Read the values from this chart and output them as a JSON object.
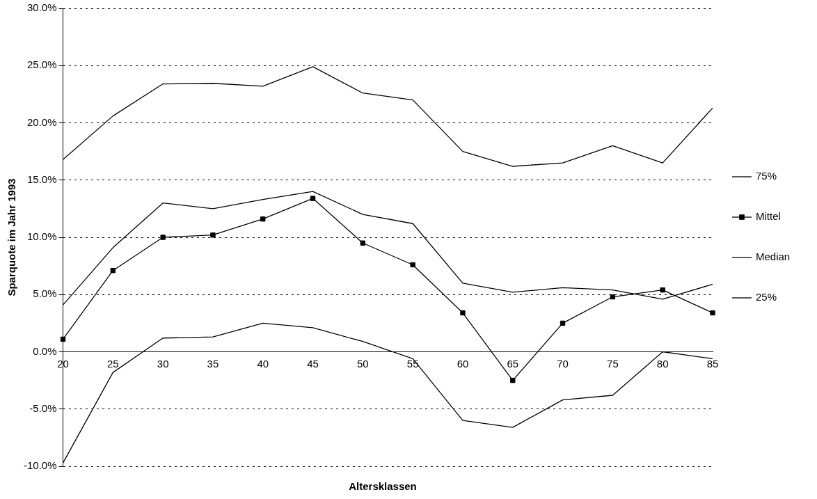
{
  "chart_data": {
    "type": "line",
    "xlabel": "Altersklassen",
    "ylabel": "Sparquote im Jahr 1993",
    "categories": [
      "20",
      "25",
      "30",
      "35",
      "40",
      "45",
      "50",
      "55",
      "60",
      "65",
      "70",
      "75",
      "80",
      "85"
    ],
    "series": [
      {
        "name": "75%",
        "color": "#000000",
        "marker": "none",
        "values": [
          16.8,
          20.6,
          23.4,
          23.45,
          23.2,
          24.9,
          22.6,
          22.0,
          17.5,
          16.2,
          16.5,
          18.0,
          16.5,
          21.3
        ]
      },
      {
        "name": "Mittel",
        "color": "#000000",
        "marker": "square",
        "values": [
          1.1,
          7.1,
          10.0,
          10.2,
          11.6,
          13.4,
          9.5,
          7.6,
          3.4,
          -2.5,
          2.5,
          4.8,
          5.4,
          3.4
        ]
      },
      {
        "name": "Median",
        "color": "#000000",
        "marker": "none",
        "values": [
          4.1,
          9.1,
          13.0,
          12.5,
          13.3,
          14.0,
          12.0,
          11.2,
          6.0,
          5.2,
          5.6,
          5.4,
          4.6,
          5.9
        ]
      },
      {
        "name": "25%",
        "color": "#000000",
        "marker": "none",
        "values": [
          -9.7,
          -1.8,
          1.2,
          1.3,
          2.5,
          2.1,
          0.9,
          -0.6,
          -6.0,
          -6.6,
          -4.2,
          -3.8,
          0.0,
          -0.6
        ]
      }
    ],
    "ylim": [
      -10,
      30
    ],
    "yticks": [
      {
        "value": -10,
        "label": "-10.0%"
      },
      {
        "value": -5,
        "label": "-5.0%"
      },
      {
        "value": 0,
        "label": "0.0%"
      },
      {
        "value": 5,
        "label": "5.0%"
      },
      {
        "value": 10,
        "label": "10.0%"
      },
      {
        "value": 15,
        "label": "15.0%"
      },
      {
        "value": 20,
        "label": "20.0%"
      },
      {
        "value": 25,
        "label": "25.0%"
      },
      {
        "value": 30,
        "label": "30.0%"
      }
    ],
    "grid": "y",
    "legend": "right",
    "line_style": "solid"
  }
}
